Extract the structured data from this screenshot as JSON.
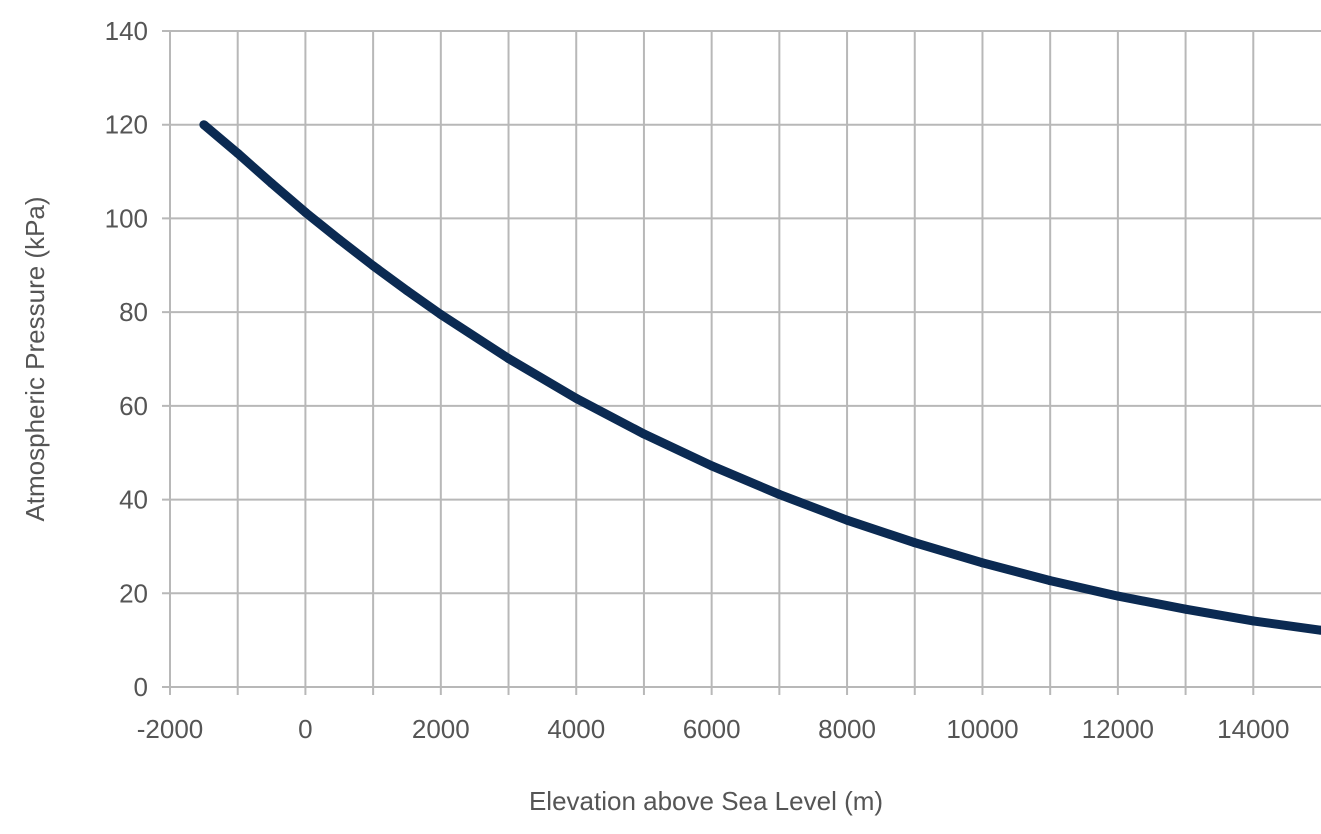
{
  "chart_data": {
    "type": "line",
    "title": "",
    "xlabel": "Elevation above Sea Level (m)",
    "ylabel": "Atmospheric Pressure (kPa)",
    "xlim": [
      -2000,
      15000
    ],
    "ylim": [
      0,
      140
    ],
    "xticks": [
      -2000,
      0,
      2000,
      4000,
      6000,
      8000,
      10000,
      12000,
      14000
    ],
    "xtick_labels": [
      "-2000",
      "0",
      "2000",
      "4000",
      "6000",
      "8000",
      "10000",
      "12000",
      "14000"
    ],
    "yticks": [
      0,
      20,
      40,
      60,
      80,
      100,
      120,
      140
    ],
    "ytick_labels": [
      "0",
      "20",
      "40",
      "60",
      "80",
      "100",
      "120",
      "140"
    ],
    "x_minor_gridlines": [
      -1000,
      1000,
      3000,
      5000,
      7000,
      9000,
      11000,
      13000
    ],
    "grid": true,
    "legend": "none",
    "series": [
      {
        "color": "#0b2a52",
        "x": [
          -1500,
          -1000,
          -500,
          0,
          500,
          1000,
          1500,
          2000,
          3000,
          4000,
          5000,
          6000,
          7000,
          8000,
          9000,
          10000,
          11000,
          12000,
          13000,
          14000,
          15000
        ],
        "y": [
          120.0,
          113.9,
          107.5,
          101.3,
          95.5,
          89.9,
          84.6,
          79.5,
          70.1,
          61.6,
          54.0,
          47.2,
          41.1,
          35.6,
          30.8,
          26.5,
          22.7,
          19.4,
          16.6,
          14.1,
          12.1
        ]
      }
    ]
  }
}
